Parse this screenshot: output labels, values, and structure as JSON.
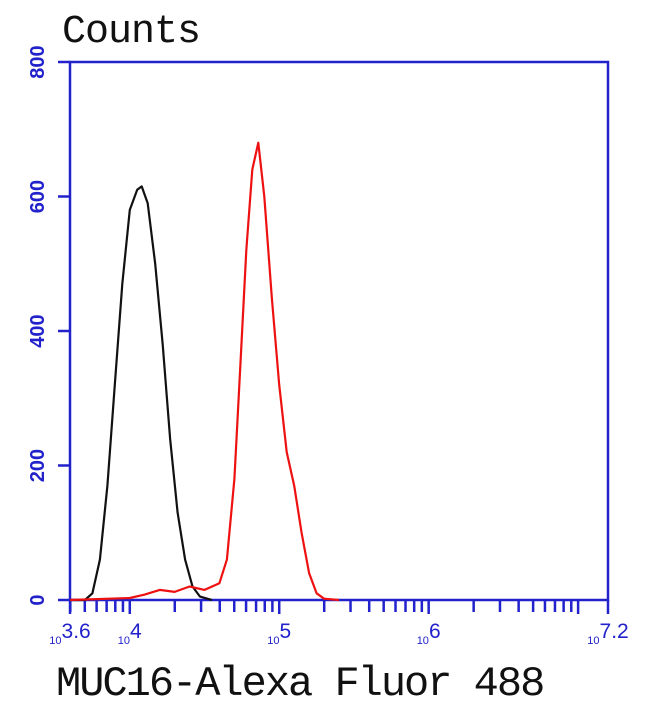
{
  "chart_data": {
    "type": "line",
    "title": "Counts",
    "xlabel": "MUC16-Alexa Fluor 488",
    "ylabel": "",
    "xscale": "log",
    "xlim": [
      3981,
      15848932
    ],
    "ylim": [
      0,
      800
    ],
    "yticks": [
      "0",
      "200",
      "400",
      "600",
      "800"
    ],
    "xticks": [
      {
        "base": "10",
        "exp": "3.6",
        "value": 3981
      },
      {
        "base": "10",
        "exp": "4",
        "value": 10000
      },
      {
        "base": "10",
        "exp": "5",
        "value": 100000
      },
      {
        "base": "10",
        "exp": "6",
        "value": 1000000
      },
      {
        "base": "10",
        "exp": "7.2",
        "value": 15848932
      }
    ],
    "grid": false,
    "colors": {
      "axis": "#2222cc",
      "black_series": "#111111",
      "red_series": "#ee1111"
    },
    "series": [
      {
        "color": "#111111",
        "x": [
          5012,
          5623,
          6310,
          7079,
          7943,
          8913,
          10000,
          11220,
          12023,
          13183,
          14791,
          16596,
          18621,
          20893,
          23442,
          26303,
          29512,
          35481
        ],
        "y": [
          0,
          10,
          60,
          170,
          320,
          470,
          580,
          610,
          615,
          590,
          500,
          380,
          240,
          130,
          60,
          20,
          5,
          0
        ]
      },
      {
        "color": "#ee1111",
        "x": [
          10000,
          12589,
          15849,
          19953,
          25119,
          31623,
          39811,
          44668,
          50119,
          54954,
          60256,
          66069,
          72444,
          79433,
          89125,
          100000,
          112202,
          125893,
          141254,
          158489,
          177828,
          199526,
          251189
        ],
        "y": [
          3,
          8,
          15,
          12,
          20,
          15,
          25,
          60,
          180,
          350,
          520,
          640,
          680,
          600,
          450,
          320,
          220,
          170,
          100,
          40,
          10,
          2,
          0
        ]
      }
    ]
  }
}
